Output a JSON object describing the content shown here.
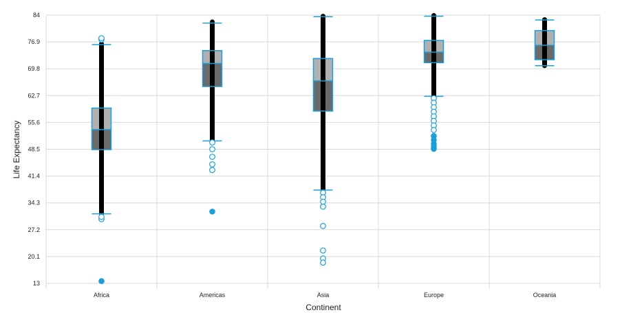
{
  "chart_data": {
    "type": "boxplot",
    "title": "",
    "xlabel": "Continent",
    "ylabel": "Life Expectancy",
    "ylim": [
      13,
      84
    ],
    "yticks": [
      "13",
      "20.1",
      "27.2",
      "34.3",
      "41.4",
      "48.5",
      "55.6",
      "62.7",
      "69.8",
      "76.9",
      "84"
    ],
    "categories": [
      "Africa",
      "Americas",
      "Asia",
      "Europe",
      "Oceania"
    ],
    "colors": {
      "whisker": "#1a9fd9",
      "box_upper": "#b0b0b0",
      "box_lower": "#6a6a6a",
      "data_strip": "#000000",
      "grid": "#d8d8d8"
    },
    "boxes": [
      {
        "category": "Africa",
        "whisker_low": 31.4,
        "q1": 48.4,
        "median": 53.7,
        "q3": 59.4,
        "whisker_high": 76.2,
        "data_min": 31.4,
        "data_max": 76.4,
        "outliers_hollow": [
          77.5,
          77.9,
          30.0,
          30.6
        ],
        "outliers_filled": [
          13.6
        ]
      },
      {
        "category": "Americas",
        "whisker_low": 50.7,
        "q1": 65.1,
        "median": 71.2,
        "q3": 74.6,
        "whisker_high": 81.9,
        "data_min": 50.7,
        "data_max": 82.2,
        "outliers_hollow": [
          50.3,
          48.5,
          46.5,
          44.5,
          43.0
        ],
        "outliers_filled": [
          32.0
        ]
      },
      {
        "category": "Asia",
        "whisker_low": 37.7,
        "q1": 58.6,
        "median": 66.6,
        "q3": 72.5,
        "whisker_high": 83.6,
        "data_min": 37.7,
        "data_max": 83.7,
        "outliers_hollow": [
          37.0,
          35.8,
          34.6,
          33.3,
          28.2,
          21.7,
          19.6,
          18.5
        ],
        "outliers_filled": []
      },
      {
        "category": "Europe",
        "whisker_low": 62.5,
        "q1": 71.4,
        "median": 74.2,
        "q3": 77.3,
        "whisker_high": 83.7,
        "data_min": 62.5,
        "data_max": 83.9,
        "outliers_hollow": [
          62.0,
          60.8,
          59.6,
          58.4,
          57.2,
          56.0,
          54.8,
          53.6
        ],
        "outliers_filled": [
          52.0,
          51.0,
          50.0,
          49.2,
          48.6
        ]
      },
      {
        "category": "Oceania",
        "whisker_low": 70.6,
        "q1": 72.2,
        "median": 76.0,
        "q3": 79.9,
        "whisker_high": 82.7,
        "data_min": 70.6,
        "data_max": 82.8,
        "outliers_hollow": [],
        "outliers_filled": []
      }
    ]
  }
}
